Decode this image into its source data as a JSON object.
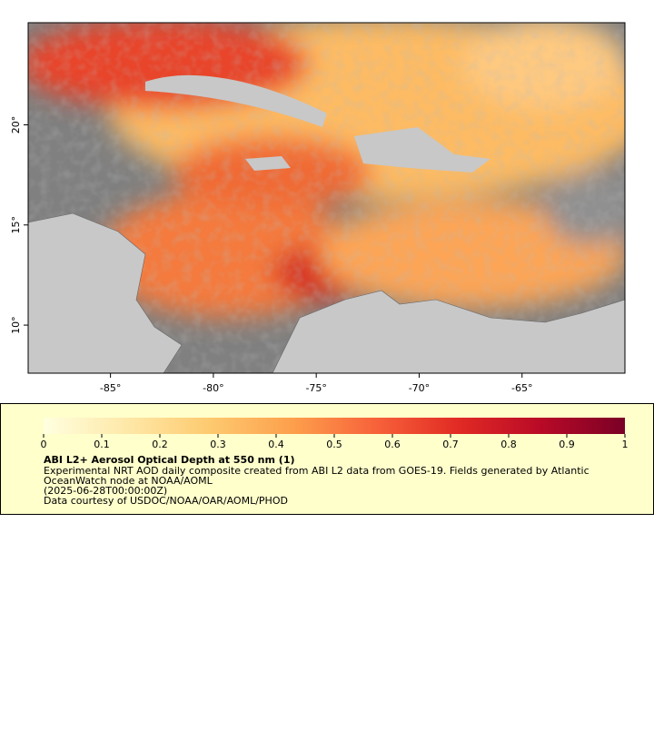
{
  "map": {
    "lon_range": [
      -89,
      -60
    ],
    "lat_range": [
      7.6,
      25.1
    ],
    "lon_ticks": [
      {
        "value": -85,
        "label": "-85°"
      },
      {
        "value": -80,
        "label": "-80°"
      },
      {
        "value": -75,
        "label": "-75°"
      },
      {
        "value": -70,
        "label": "-70°"
      },
      {
        "value": -65,
        "label": "-65°"
      }
    ],
    "lat_ticks": [
      {
        "value": 10,
        "label": "10°"
      },
      {
        "value": 15,
        "label": "15°"
      },
      {
        "value": 20,
        "label": "20°"
      }
    ]
  },
  "colorbar": {
    "range": [
      0,
      1
    ],
    "ticks": [
      0,
      0.1,
      0.2,
      0.3,
      0.4,
      0.5,
      0.6,
      0.7,
      0.8,
      0.9,
      1
    ],
    "colors": [
      "#ffffe0",
      "#fee8a8",
      "#fdca6f",
      "#fd9f4c",
      "#f7623a",
      "#e12a24",
      "#b80a27",
      "#7a0026"
    ]
  },
  "caption": {
    "title": "ABI L2+ Aerosol Optical Depth at 550 nm (1)",
    "description": [
      "Experimental NRT AOD daily composite created from ABI L2 data from GOES-19. Fields generated by Atlantic",
      "OceanWatch node at NOAA/AOML"
    ],
    "time": "(2025-06-28T00:00:00Z)",
    "credit": "Data courtesy of USDOC/NOAA/OAR/AOML/PHOD"
  }
}
